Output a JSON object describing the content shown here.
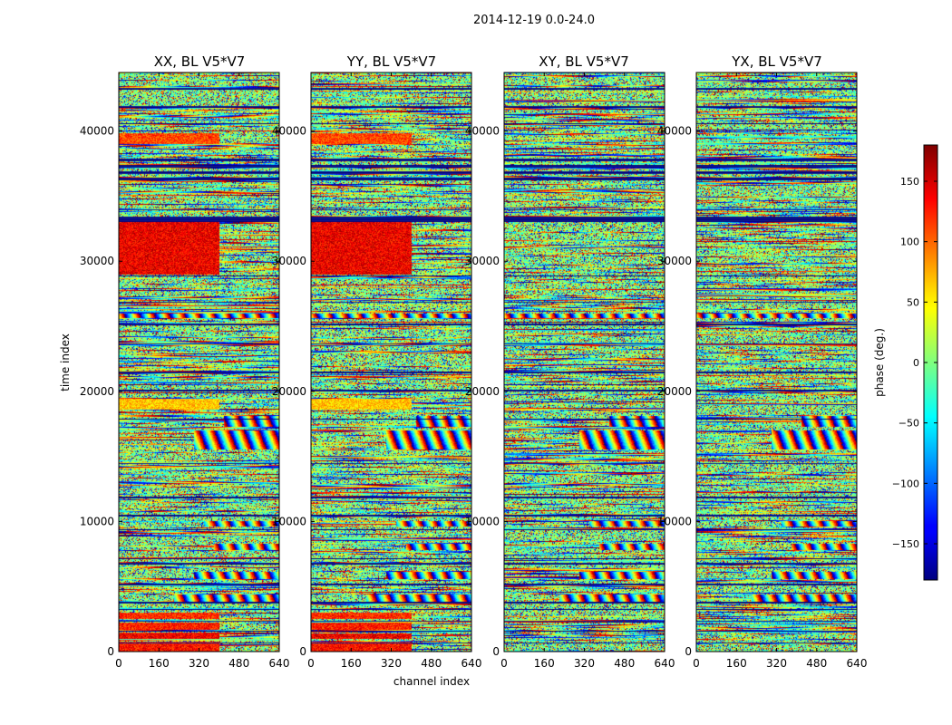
{
  "figure": {
    "suptitle": "2014-12-19 0.0-24.0"
  },
  "chart_data": {
    "type": "heatmap",
    "x_label": "channel index",
    "y_label": "time index",
    "x_ticks": [
      0,
      160,
      320,
      480,
      640
    ],
    "y_ticks": [
      0,
      10000,
      20000,
      30000,
      40000
    ],
    "x_range": [
      0,
      640
    ],
    "y_range": [
      0,
      44500
    ],
    "panels": [
      {
        "title": "XX, BL V5*V7"
      },
      {
        "title": "YY, BL V5*V7"
      },
      {
        "title": "XY, BL V5*V7"
      },
      {
        "title": "YX, BL V5*V7"
      }
    ],
    "colorbar": {
      "label": "phase (deg.)",
      "range": [
        -180,
        180
      ],
      "ticks": [
        -150,
        -100,
        -50,
        0,
        50,
        100,
        150
      ],
      "tick_labels": [
        "−150",
        "−100",
        "−50",
        "0",
        "50",
        "100",
        "150"
      ],
      "colormap": "jet"
    },
    "bands": [
      {
        "y": [
          0,
          800
        ],
        "ph": 130,
        "cut": 400
      },
      {
        "y": [
          1000,
          1400
        ],
        "ph": 140,
        "cut": 400
      },
      {
        "y": [
          1700,
          2200
        ],
        "ph": 125,
        "cut": 400
      },
      {
        "y": [
          2500,
          3000
        ],
        "ph": 120,
        "cut": 400
      },
      {
        "y": [
          18600,
          19400
        ],
        "ph": 65,
        "cut": 400
      },
      {
        "y": [
          29000,
          33000
        ],
        "ph": 140,
        "cut": 400
      },
      {
        "y": [
          39000,
          39800
        ],
        "ph": 110,
        "cut": 400
      }
    ],
    "gaps": [
      [
        600,
        700
      ],
      [
        1500,
        1600
      ],
      [
        2300,
        2400
      ],
      [
        3200,
        3300
      ],
      [
        3700,
        3800
      ],
      [
        5100,
        5200
      ],
      [
        6700,
        6800
      ],
      [
        7100,
        7200
      ],
      [
        9300,
        9400
      ],
      [
        10400,
        10500
      ],
      [
        11800,
        11900
      ],
      [
        14400,
        14500
      ],
      [
        17800,
        17900
      ],
      [
        20000,
        20150
      ],
      [
        21400,
        21500
      ],
      [
        23600,
        23700
      ],
      [
        25100,
        25200
      ],
      [
        26800,
        26900
      ],
      [
        28800,
        28900
      ],
      [
        33000,
        33400
      ],
      [
        33900,
        34000
      ],
      [
        36200,
        36400
      ],
      [
        36700,
        36900
      ],
      [
        37200,
        37400
      ],
      [
        37700,
        37900
      ],
      [
        40500,
        40600
      ],
      [
        41800,
        41900
      ],
      [
        43200,
        43300
      ]
    ],
    "fringes": [
      {
        "y": [
          3800,
          4400
        ],
        "x0": 220
      },
      {
        "y": [
          5600,
          6100
        ],
        "x0": 300
      },
      {
        "y": [
          7800,
          8300
        ],
        "x0": 380
      },
      {
        "y": [
          9600,
          10000
        ],
        "x0": 340
      },
      {
        "y": [
          15500,
          17000
        ],
        "x0": 300
      },
      {
        "y": [
          17300,
          18100
        ],
        "x0": 420
      },
      {
        "y": [
          25600,
          26000
        ],
        "x0": 0
      }
    ],
    "seed": 20141219
  }
}
